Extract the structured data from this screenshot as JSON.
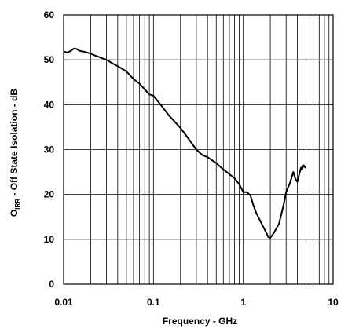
{
  "chart_data": {
    "type": "line",
    "title": "",
    "xlabel": "Frequency - GHz",
    "ylabel": {
      "main": "O",
      "subscript": "IRR",
      "rest": " - Off State Isolation - dB"
    },
    "x_scale": "log",
    "xlim": [
      0.01,
      10
    ],
    "ylim": [
      0,
      60
    ],
    "x_ticks": [
      {
        "value": 0.01,
        "label": "0.01"
      },
      {
        "value": 0.1,
        "label": "0.1"
      },
      {
        "value": 1,
        "label": "1"
      },
      {
        "value": 10,
        "label": "10"
      }
    ],
    "y_ticks": [
      {
        "value": 0,
        "label": "0"
      },
      {
        "value": 10,
        "label": "10"
      },
      {
        "value": 20,
        "label": "20"
      },
      {
        "value": 30,
        "label": "30"
      },
      {
        "value": 40,
        "label": "40"
      },
      {
        "value": 50,
        "label": "50"
      },
      {
        "value": 60,
        "label": "60"
      }
    ],
    "grid": true,
    "series": [
      {
        "x": [
          0.0103,
          0.011,
          0.012,
          0.013,
          0.014,
          0.015,
          0.017,
          0.02,
          0.022,
          0.025,
          0.03,
          0.035,
          0.04,
          0.05,
          0.06,
          0.07,
          0.08,
          0.09,
          0.1,
          0.12,
          0.15,
          0.2,
          0.25,
          0.3,
          0.35,
          0.4,
          0.5,
          0.6,
          0.7,
          0.8,
          0.9,
          1.0,
          1.1,
          1.2,
          1.3,
          1.4,
          1.6,
          1.8,
          1.9,
          2.0,
          2.2,
          2.5,
          2.8,
          3.0,
          3.3,
          3.6,
          3.8,
          4.0,
          4.2,
          4.4,
          4.5,
          4.7,
          4.9
        ],
        "y": [
          51.8,
          51.6,
          52.0,
          52.5,
          52.4,
          52.0,
          51.8,
          51.4,
          51.0,
          50.6,
          50.0,
          49.2,
          48.6,
          47.4,
          45.7,
          44.7,
          43.4,
          42.3,
          42.0,
          40.0,
          37.5,
          34.8,
          32.2,
          30.0,
          28.8,
          28.3,
          27.0,
          25.6,
          24.5,
          23.6,
          22.3,
          20.5,
          20.5,
          19.8,
          17.5,
          15.8,
          13.5,
          11.5,
          10.5,
          10.3,
          11.5,
          13.5,
          17.5,
          20.5,
          22.5,
          25.0,
          23.5,
          22.8,
          24.5,
          26.0,
          25.5,
          26.5,
          26.0
        ]
      }
    ]
  }
}
